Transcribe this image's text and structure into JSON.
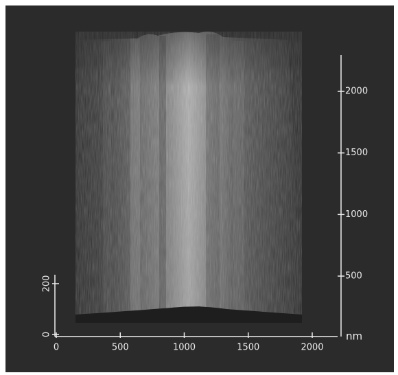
{
  "x_axis": {
    "ticks": [
      0,
      500,
      1000,
      1500,
      2000
    ],
    "unit": "nm"
  },
  "y_axis": {
    "ticks": [
      500,
      1000,
      1500,
      2000
    ]
  },
  "z_axis": {
    "ticks": [
      0,
      200
    ]
  }
}
